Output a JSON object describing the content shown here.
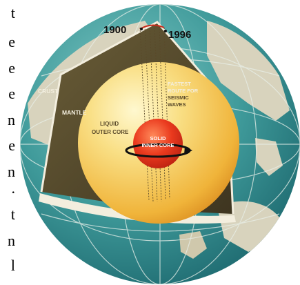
{
  "side_text": [
    "t",
    "e",
    "e",
    "e",
    "n",
    "e",
    "n",
    ".",
    "t",
    "n",
    "l"
  ],
  "years": {
    "left": "1900",
    "right": "1996"
  },
  "layers": {
    "crust": "CRUST",
    "mantle": "MANTLE",
    "outer_core_line1": "LIQUID",
    "outer_core_line2": "OUTER CORE",
    "inner_core_line1": "SOLID",
    "inner_core_line2": "INNER CORE"
  },
  "route": {
    "line1": "FASTEST",
    "line2": "ROUTE FOR",
    "line3": "SEISMIC",
    "line4": "WAVES"
  },
  "colors": {
    "ocean": "#3f9a9a",
    "land": "#d8d3bd",
    "mantle": "#5b5030",
    "outer_core": "#f3c24a",
    "inner_core": "#e8321e",
    "white_band": "#f3eede"
  }
}
